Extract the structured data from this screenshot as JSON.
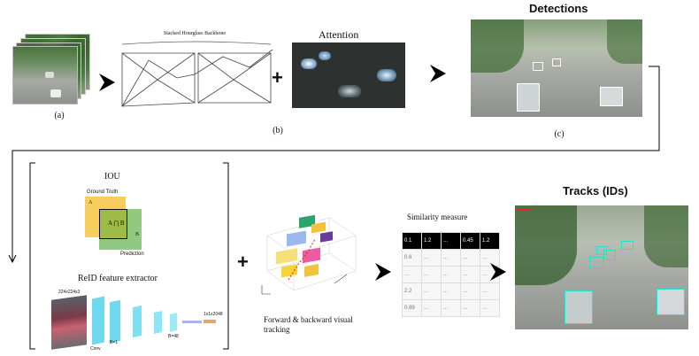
{
  "captions": {
    "a": "(a)",
    "b": "(b)",
    "c": "(c)",
    "backbone": "Stacked Hourglass Backbone",
    "attention": "Attention",
    "detections": "Detections",
    "iou": "IOU",
    "ground_truth": "Ground Truth",
    "prediction": "Prediction",
    "box_a": "A",
    "box_b": "B",
    "reid": "ReID feature extractor",
    "reid_input": "224x224x3",
    "reid_out": "1x1x2048",
    "reid_conv": "Conv",
    "reid_b1": "B=1",
    "reid_b4": "B=48",
    "tracking": "Forward & backward visual tracking",
    "similarity": "Similarity measure",
    "tracks": "Tracks (IDs)"
  },
  "similarity_table": {
    "header": [
      "0.1",
      "1.2",
      "...",
      "0.45",
      "1.2"
    ],
    "rows": [
      [
        "0.6",
        "...",
        "...",
        "...",
        "..."
      ],
      [
        "...",
        "...",
        "...",
        "...",
        "..."
      ],
      [
        "2.2",
        "...",
        "...",
        "...",
        "..."
      ],
      [
        "0.89",
        "...",
        "...",
        "...",
        "..."
      ]
    ]
  },
  "colors": {
    "gt_box": "#f6c94b",
    "pred_box": "#7fbf6a",
    "track_box": "#27e0d0",
    "cube_cyan": "#6ed8ef",
    "cube_orange": "#e8a46d"
  },
  "icons": {
    "arrow": "black-arrowhead",
    "plus": "plus-sign"
  }
}
